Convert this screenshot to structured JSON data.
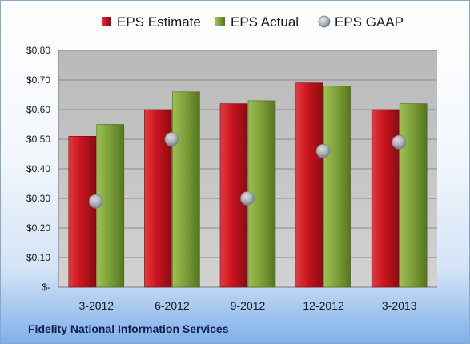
{
  "footer": {
    "company": "Fidelity National Information Services"
  },
  "colors": {
    "estimate": "#c8141e",
    "actual": "#7ea23a",
    "gaap": "#b7bec7",
    "plot_background": "#c4c4c4"
  },
  "chart_data": {
    "type": "bar",
    "categories": [
      "3-2012",
      "6-2012",
      "9-2012",
      "12-2012",
      "3-2013"
    ],
    "series": [
      {
        "name": "EPS Estimate",
        "kind": "bar",
        "values": [
          0.51,
          0.6,
          0.62,
          0.69,
          0.6
        ]
      },
      {
        "name": "EPS Actual",
        "kind": "bar",
        "values": [
          0.55,
          0.66,
          0.63,
          0.68,
          0.62
        ]
      },
      {
        "name": "EPS GAAP",
        "kind": "marker",
        "values": [
          0.29,
          0.5,
          0.3,
          0.46,
          0.49
        ]
      }
    ],
    "y_ticks": [
      "$-",
      "$0.10",
      "$0.20",
      "$0.30",
      "$0.40",
      "$0.50",
      "$0.60",
      "$0.70",
      "$0.80"
    ],
    "ylim": [
      0,
      0.8
    ],
    "y_step": 0.1,
    "grid": true,
    "legend_position": "top"
  }
}
